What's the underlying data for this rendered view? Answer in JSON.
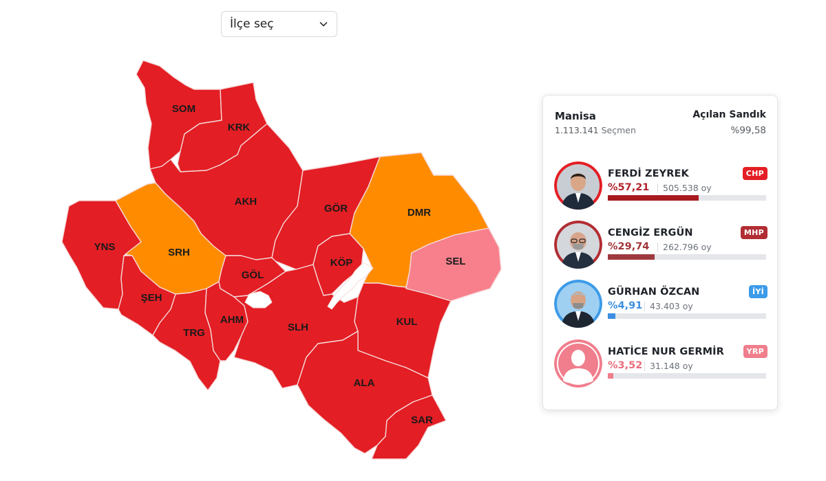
{
  "selector": {
    "placeholder": "İlçe seç",
    "icon": "chevron-down-icon"
  },
  "colors": {
    "chp": "#e31e24",
    "mhp": "#b12d33",
    "iyi": "#3d9be9",
    "yrp": "#f07e8c",
    "dmr": "#ff8c00",
    "sel": "#f7808c",
    "background": "#ffffff"
  },
  "map": {
    "districts": [
      {
        "code": "SOM",
        "party": "CHP"
      },
      {
        "code": "KRK",
        "party": "CHP"
      },
      {
        "code": "AKH",
        "party": "CHP"
      },
      {
        "code": "GÖR",
        "party": "CHP"
      },
      {
        "code": "DMR",
        "party": "MHP"
      },
      {
        "code": "SEL",
        "party": "MHP"
      },
      {
        "code": "YNS",
        "party": "CHP"
      },
      {
        "code": "SRH",
        "party": "MHP"
      },
      {
        "code": "GÖL",
        "party": "CHP"
      },
      {
        "code": "KÖP",
        "party": "CHP"
      },
      {
        "code": "ŞEH",
        "party": "CHP"
      },
      {
        "code": "AHM",
        "party": "CHP"
      },
      {
        "code": "TRG",
        "party": "CHP"
      },
      {
        "code": "SLH",
        "party": "CHP"
      },
      {
        "code": "KUL",
        "party": "CHP"
      },
      {
        "code": "ALA",
        "party": "CHP"
      },
      {
        "code": "SAR",
        "party": "CHP"
      }
    ]
  },
  "summary": {
    "province": "Manisa",
    "voters_count": "1.113.141",
    "voters_label": "Seçmen",
    "ballot_label": "Açılan Sandık",
    "ballot_value": "%99,58"
  },
  "candidates": [
    {
      "name": "FERDİ ZEYREK",
      "pct_label": "%57,21",
      "pct": 57.21,
      "votes": "505.538 oy",
      "party": "CHP",
      "color": "#e31e24",
      "bar_color": "#a71b20",
      "pct_color": "#b3232b",
      "avatar": "ferdi-zeyrek-avatar"
    },
    {
      "name": "CENGİZ ERGÜN",
      "pct_label": "%29,74",
      "pct": 29.74,
      "votes": "262.796 oy",
      "party": "MHP",
      "color": "#b12d33",
      "bar_color": "#9e3a3f",
      "pct_color": "#a1343a",
      "avatar": "cengiz-ergun-avatar"
    },
    {
      "name": "GÜRHAN ÖZCAN",
      "pct_label": "%4,91",
      "pct": 4.91,
      "votes": "43.403 oy",
      "party": "İYİ",
      "color": "#3d9be9",
      "bar_color": "#3d8ee0",
      "pct_color": "#3d8ee0",
      "avatar": "gurhan-ozcan-avatar"
    },
    {
      "name": "HATİCE NUR GERMİR",
      "pct_label": "%3,52",
      "pct": 3.52,
      "votes": "31.148 oy",
      "party": "YRP",
      "color": "#f07e8c",
      "bar_color": "#f07e8c",
      "pct_color": "#e96d7d",
      "avatar": "placeholder-avatar"
    }
  ]
}
